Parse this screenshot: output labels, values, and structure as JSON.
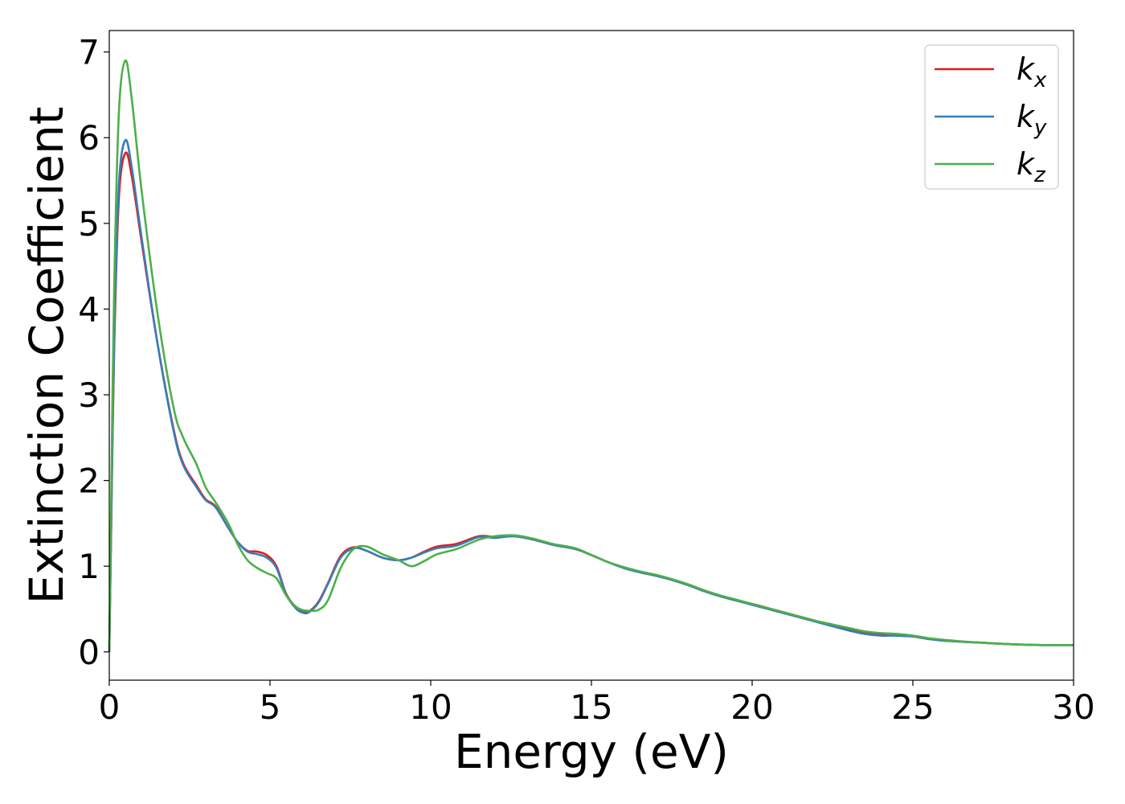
{
  "chart_data": {
    "type": "line",
    "xlabel": "Energy (eV)",
    "ylabel": "Extinction Coefficient",
    "xlim": [
      0,
      30
    ],
    "ylim": [
      -0.33,
      7.25
    ],
    "xticks": [
      "0",
      "5",
      "10",
      "15",
      "20",
      "25",
      "30"
    ],
    "yticks": [
      "0",
      "1",
      "2",
      "3",
      "4",
      "5",
      "6",
      "7"
    ],
    "grid": false,
    "legend_position": "top-right",
    "x": [
      0,
      0.05,
      0.15,
      0.3,
      0.5,
      0.7,
      1.0,
      1.5,
      2.0,
      2.3,
      2.7,
      3.0,
      3.3,
      3.7,
      4.0,
      4.3,
      4.6,
      4.9,
      5.2,
      5.5,
      5.8,
      6.0,
      6.2,
      6.5,
      6.8,
      7.2,
      7.6,
      8.0,
      8.5,
      9.0,
      9.4,
      9.8,
      10.2,
      10.8,
      11.5,
      12.0,
      12.6,
      13.2,
      13.8,
      14.5,
      15.0,
      15.5,
      16.0,
      16.5,
      17.0,
      17.5,
      18.0,
      18.5,
      19.0,
      19.5,
      20.0,
      20.5,
      21.0,
      21.5,
      22.0,
      22.5,
      23.0,
      23.5,
      24.0,
      24.5,
      25.0,
      25.5,
      26.0,
      27.0,
      28.0,
      29.0,
      30.0
    ],
    "series": [
      {
        "name": "k_x",
        "label_base": "k",
        "label_sub": "x",
        "color": "#e41a1c",
        "values": [
          0.0,
          1.2,
          3.5,
          5.3,
          5.82,
          5.55,
          4.8,
          3.6,
          2.6,
          2.2,
          1.95,
          1.78,
          1.7,
          1.45,
          1.28,
          1.18,
          1.17,
          1.13,
          1.0,
          0.68,
          0.52,
          0.47,
          0.47,
          0.58,
          0.8,
          1.12,
          1.22,
          1.18,
          1.1,
          1.07,
          1.1,
          1.17,
          1.23,
          1.26,
          1.35,
          1.34,
          1.35,
          1.31,
          1.25,
          1.2,
          1.13,
          1.05,
          0.98,
          0.93,
          0.89,
          0.84,
          0.78,
          0.71,
          0.65,
          0.6,
          0.56,
          0.51,
          0.46,
          0.41,
          0.36,
          0.31,
          0.26,
          0.22,
          0.2,
          0.19,
          0.18,
          0.15,
          0.13,
          0.11,
          0.09,
          0.08,
          0.08
        ]
      },
      {
        "name": "k_y",
        "label_base": "k",
        "label_sub": "y",
        "color": "#377eb8",
        "values": [
          0.0,
          1.25,
          3.6,
          5.45,
          5.97,
          5.65,
          4.85,
          3.6,
          2.58,
          2.18,
          1.93,
          1.77,
          1.69,
          1.45,
          1.28,
          1.17,
          1.14,
          1.1,
          0.98,
          0.67,
          0.51,
          0.46,
          0.46,
          0.57,
          0.79,
          1.1,
          1.21,
          1.18,
          1.1,
          1.07,
          1.1,
          1.16,
          1.21,
          1.24,
          1.34,
          1.33,
          1.35,
          1.31,
          1.25,
          1.2,
          1.13,
          1.05,
          0.98,
          0.93,
          0.89,
          0.84,
          0.78,
          0.71,
          0.65,
          0.6,
          0.55,
          0.5,
          0.45,
          0.4,
          0.35,
          0.3,
          0.25,
          0.21,
          0.19,
          0.19,
          0.18,
          0.15,
          0.13,
          0.11,
          0.09,
          0.08,
          0.08
        ]
      },
      {
        "name": "k_z",
        "label_base": "k",
        "label_sub": "z",
        "color": "#4daf4a",
        "values": [
          0.0,
          1.5,
          4.2,
          6.3,
          6.9,
          6.45,
          5.4,
          3.95,
          2.85,
          2.5,
          2.2,
          1.92,
          1.75,
          1.5,
          1.25,
          1.07,
          0.98,
          0.92,
          0.86,
          0.66,
          0.53,
          0.49,
          0.48,
          0.49,
          0.6,
          0.98,
          1.2,
          1.23,
          1.14,
          1.07,
          1.0,
          1.06,
          1.14,
          1.2,
          1.31,
          1.35,
          1.36,
          1.32,
          1.26,
          1.21,
          1.13,
          1.05,
          0.99,
          0.94,
          0.9,
          0.85,
          0.79,
          0.72,
          0.66,
          0.61,
          0.56,
          0.51,
          0.46,
          0.41,
          0.36,
          0.32,
          0.28,
          0.24,
          0.22,
          0.21,
          0.19,
          0.16,
          0.14,
          0.11,
          0.09,
          0.08,
          0.08
        ]
      }
    ]
  }
}
